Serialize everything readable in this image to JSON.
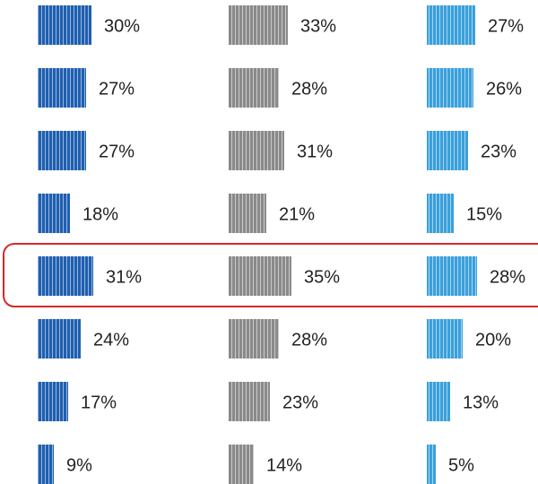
{
  "chart_data": {
    "type": "bar",
    "categories": [
      null,
      null,
      null,
      null,
      null,
      null,
      null,
      null
    ],
    "series": [
      {
        "color": "#1f5fb0",
        "values": [
          30,
          27,
          27,
          18,
          31,
          24,
          17,
          9
        ],
        "value_labels": [
          "30%",
          "27%",
          "27%",
          "18%",
          "31%",
          "24%",
          "17%",
          "9%"
        ]
      },
      {
        "color": "#8a8a8a",
        "values": [
          33,
          28,
          31,
          21,
          35,
          28,
          23,
          14
        ],
        "value_labels": [
          "33%",
          "28%",
          "31%",
          "21%",
          "35%",
          "28%",
          "23%",
          "14%"
        ]
      },
      {
        "color": "#3aa0dc",
        "values": [
          27,
          26,
          23,
          15,
          28,
          20,
          13,
          5
        ],
        "value_labels": [
          "27%",
          "26%",
          "23%",
          "15%",
          "28%",
          "20%",
          "13%",
          "5%"
        ]
      }
    ]
  }
}
